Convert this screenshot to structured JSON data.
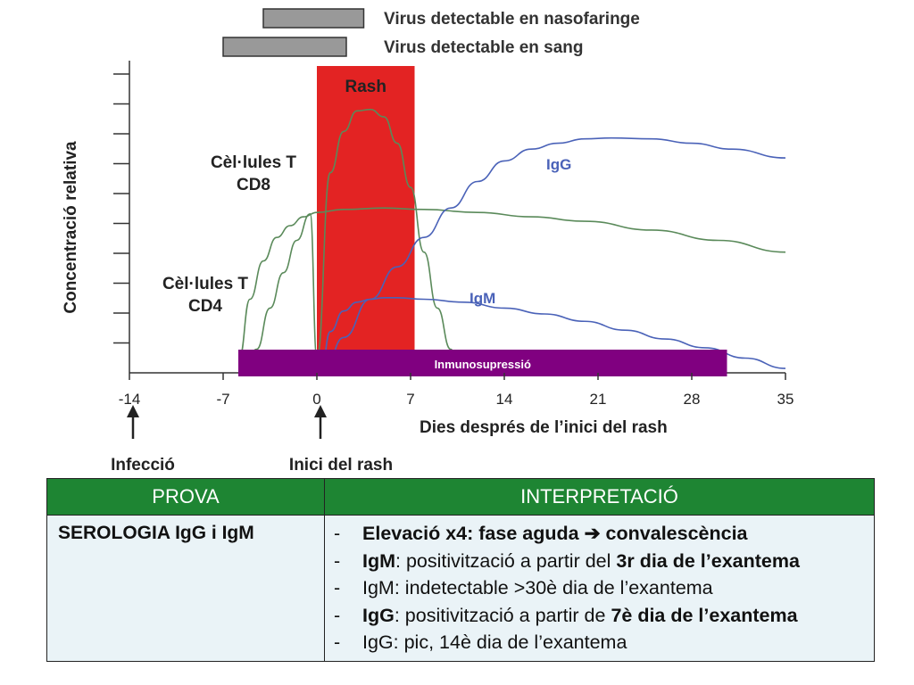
{
  "chart_data": {
    "type": "line",
    "xlabel": "Dies després de l’inici del rash",
    "ylabel": "Concentració relativa",
    "xlim": [
      -14,
      35
    ],
    "ylim": [
      0,
      10
    ],
    "x_ticks": [
      -14,
      -7,
      0,
      7,
      14,
      21,
      28,
      35
    ],
    "grid": false,
    "bars": [
      {
        "label": "Virus detectable en nasofaringe",
        "start": -4,
        "end": 3.5,
        "color": "#999999"
      },
      {
        "label": "Virus detectable en sang",
        "start": -7,
        "end": 2.2,
        "color": "#999999"
      }
    ],
    "shaded_regions": [
      {
        "label": "Rash",
        "start": 0,
        "end": 7.3,
        "color": "#e32323"
      }
    ],
    "immuno_band": {
      "label": "Inmunosupressió",
      "start": -6,
      "end": 30.5,
      "color": "#800080"
    },
    "series": [
      {
        "name": "Cèl·lules T CD8",
        "color": "#5a8a5a",
        "x": [
          -5.5,
          -4.5,
          -3.5,
          -2.5,
          -1.5,
          -0.5,
          0,
          1,
          2,
          3,
          4,
          5,
          6,
          7,
          8,
          9,
          10,
          10.6
        ],
        "y": [
          0,
          0.8,
          2.2,
          3.4,
          4.5,
          5.4,
          0.5,
          6.8,
          8.2,
          8.9,
          8.95,
          8.7,
          7.8,
          6.3,
          4.1,
          2.2,
          0.8,
          0
        ]
      },
      {
        "name": "Cèl·lules T CD4",
        "color": "#5a8a5a",
        "x": [
          -5.8,
          -5,
          -4,
          -3,
          -2,
          -1,
          0,
          2,
          5,
          8,
          12,
          16,
          20,
          25,
          30,
          35
        ],
        "y": [
          0.5,
          2.5,
          3.8,
          4.6,
          5.0,
          5.3,
          5.45,
          5.55,
          5.6,
          5.55,
          5.45,
          5.3,
          5.15,
          4.85,
          4.5,
          4.1
        ]
      },
      {
        "name": "IgG",
        "color": "#4a62b8",
        "x": [
          0.5,
          2,
          4,
          6,
          8,
          10,
          12,
          14,
          16,
          18,
          20,
          22,
          25,
          28,
          31,
          35
        ],
        "y": [
          0,
          1.2,
          2.5,
          3.6,
          4.6,
          5.6,
          6.5,
          7.2,
          7.6,
          7.8,
          7.95,
          7.98,
          7.95,
          7.8,
          7.6,
          7.3
        ]
      },
      {
        "name": "IgM",
        "color": "#4a62b8",
        "x": [
          0.3,
          1,
          2,
          3,
          4,
          5,
          6,
          8,
          11,
          14,
          17,
          20,
          23,
          26,
          29,
          32,
          35
        ],
        "y": [
          0,
          1.4,
          2.1,
          2.4,
          2.5,
          2.55,
          2.55,
          2.5,
          2.4,
          2.2,
          2.0,
          1.75,
          1.45,
          1.15,
          0.85,
          0.5,
          0.15
        ]
      }
    ],
    "annotations": [
      {
        "text": "Infecció",
        "x": -14
      },
      {
        "text": "Inici del rash",
        "x": 0
      }
    ]
  },
  "table": {
    "headers": [
      "PROVA",
      "INTERPRETACIÓ"
    ],
    "prova": "SEROLOGIA IgG i IgM",
    "items": [
      {
        "dash": "-",
        "parts": [
          {
            "t": "Elevació x4: fase aguda ",
            "b": true
          },
          {
            "t": "➔",
            "b": true
          },
          {
            "t": " convalescència",
            "b": true
          }
        ]
      },
      {
        "dash": "-",
        "parts": [
          {
            "t": "IgM",
            "b": true
          },
          {
            "t": ": positivització a partir del ",
            "b": false
          },
          {
            "t": "3r dia de l’exantema",
            "b": true
          }
        ]
      },
      {
        "dash": "-",
        "parts": [
          {
            "t": "IgM: indetectable >30è dia de l’exantema",
            "b": false
          }
        ]
      },
      {
        "dash": "-",
        "parts": [
          {
            "t": "IgG",
            "b": true
          },
          {
            "t": ": positivització a partir de ",
            "b": false
          },
          {
            "t": "7è dia de l’exantema",
            "b": true
          }
        ]
      },
      {
        "dash": "-",
        "parts": [
          {
            "t": "IgG: pic, 14è dia de l’exantema",
            "b": false
          }
        ]
      }
    ]
  }
}
